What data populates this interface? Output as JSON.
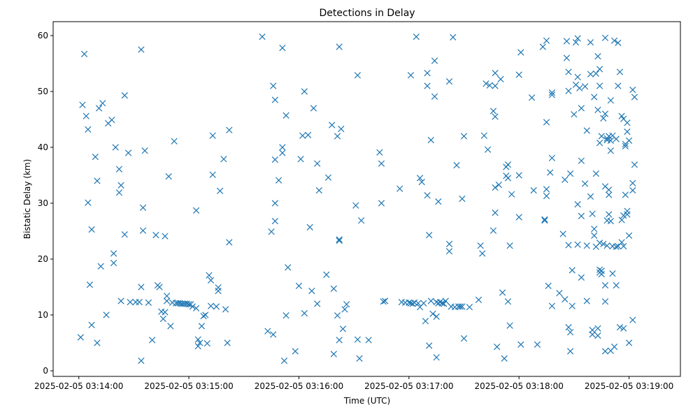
{
  "chart_data": {
    "type": "scatter",
    "title": "Detections in Delay",
    "xlabel": "Time (UTC)",
    "ylabel": "Bistatic Delay (km)",
    "x_date": "2025-02-05",
    "x_ticks": [
      "2025-02-05 03:14:00",
      "2025-02-05 03:15:00",
      "2025-02-05 03:16:00",
      "2025-02-05 03:17:00",
      "2025-02-05 03:18:00",
      "2025-02-05 03:19:00"
    ],
    "xlim": [
      "03:13:46",
      "03:19:28"
    ],
    "y_ticks": [
      0,
      10,
      20,
      30,
      40,
      50,
      60
    ],
    "ylim": [
      -1,
      62.5
    ],
    "marker": "x",
    "color": "#1f77b4",
    "grid": false,
    "points": [
      [
        "03:14:02",
        47.6
      ],
      [
        "03:14:03",
        56.7
      ],
      [
        "03:14:04",
        45.6
      ],
      [
        "03:14:05",
        43.2
      ],
      [
        "03:14:05",
        30.1
      ],
      [
        "03:14:07",
        25.3
      ],
      [
        "03:14:09",
        38.3
      ],
      [
        "03:14:10",
        34.0
      ],
      [
        "03:14:11",
        47.0
      ],
      [
        "03:14:13",
        47.9
      ],
      [
        "03:14:16",
        44.3
      ],
      [
        "03:14:18",
        44.9
      ],
      [
        "03:14:20",
        40.0
      ],
      [
        "03:14:22",
        36.1
      ],
      [
        "03:14:23",
        33.2
      ],
      [
        "03:14:25",
        24.4
      ],
      [
        "03:14:25",
        49.3
      ],
      [
        "03:14:27",
        39.0
      ],
      [
        "03:14:01",
        6.0
      ],
      [
        "03:14:06",
        15.4
      ],
      [
        "03:14:07",
        8.2
      ],
      [
        "03:14:10",
        5.0
      ],
      [
        "03:14:12",
        18.7
      ],
      [
        "03:14:15",
        10.0
      ],
      [
        "03:14:19",
        21.0
      ],
      [
        "03:14:19",
        19.3
      ],
      [
        "03:14:22",
        31.9
      ],
      [
        "03:14:23",
        12.5
      ],
      [
        "03:14:28",
        12.3
      ],
      [
        "03:14:31",
        12.3
      ],
      [
        "03:14:33",
        12.3
      ],
      [
        "03:14:34",
        57.5
      ],
      [
        "03:14:35",
        29.2
      ],
      [
        "03:14:35",
        25.1
      ],
      [
        "03:14:36",
        39.4
      ],
      [
        "03:14:38",
        12.2
      ],
      [
        "03:14:40",
        5.5
      ],
      [
        "03:14:42",
        24.3
      ],
      [
        "03:14:44",
        15.0
      ],
      [
        "03:14:45",
        10.6
      ],
      [
        "03:14:46",
        9.3
      ],
      [
        "03:14:47",
        24.1
      ],
      [
        "03:14:48",
        12.5
      ],
      [
        "03:14:49",
        34.8
      ],
      [
        "03:14:50",
        8.0
      ],
      [
        "03:14:51",
        12.2
      ],
      [
        "03:14:52",
        41.1
      ],
      [
        "03:14:53",
        12.1
      ],
      [
        "03:14:54",
        12.1
      ],
      [
        "03:14:55",
        12.1
      ],
      [
        "03:14:56",
        12.0
      ],
      [
        "03:14:57",
        12.0
      ],
      [
        "03:14:58",
        12.0
      ],
      [
        "03:14:59",
        12.0
      ],
      [
        "03:15:00",
        11.9
      ],
      [
        "03:15:01",
        11.9
      ],
      [
        "03:15:02",
        11.5
      ],
      [
        "03:15:04",
        11.2
      ],
      [
        "03:15:06",
        5.0
      ],
      [
        "03:15:09",
        10.0
      ],
      [
        "03:15:10",
        4.9
      ],
      [
        "03:15:12",
        11.6
      ],
      [
        "03:15:13",
        42.1
      ],
      [
        "03:15:13",
        35.1
      ],
      [
        "03:15:15",
        11.5
      ],
      [
        "03:15:16",
        14.9
      ],
      [
        "03:15:17",
        32.2
      ],
      [
        "03:15:19",
        37.9
      ],
      [
        "03:15:20",
        11.0
      ],
      [
        "03:15:21",
        5.0
      ],
      [
        "03:15:22",
        43.1
      ],
      [
        "03:15:22",
        23.0
      ],
      [
        "03:14:34",
        15.0
      ],
      [
        "03:14:34",
        1.8
      ],
      [
        "03:15:04",
        28.7
      ],
      [
        "03:15:05",
        5.6
      ],
      [
        "03:15:05",
        4.4
      ],
      [
        "03:15:07",
        8.0
      ],
      [
        "03:15:08",
        9.8
      ],
      [
        "03:15:11",
        17.1
      ],
      [
        "03:15:12",
        16.2
      ],
      [
        "03:15:16",
        14.3
      ],
      [
        "03:14:48",
        13.4
      ],
      [
        "03:14:47",
        10.5
      ],
      [
        "03:14:43",
        15.3
      ],
      [
        "03:15:40",
        59.8
      ],
      [
        "03:15:43",
        7.1
      ],
      [
        "03:15:46",
        6.5
      ],
      [
        "03:15:45",
        24.9
      ],
      [
        "03:15:46",
        51.0
      ],
      [
        "03:15:47",
        30.0
      ],
      [
        "03:15:47",
        26.8
      ],
      [
        "03:15:47",
        37.8
      ],
      [
        "03:15:47",
        48.5
      ],
      [
        "03:15:49",
        34.1
      ],
      [
        "03:15:51",
        57.8
      ],
      [
        "03:15:51",
        40.0
      ],
      [
        "03:15:51",
        39.0
      ],
      [
        "03:15:52",
        1.8
      ],
      [
        "03:15:53",
        9.9
      ],
      [
        "03:15:53",
        45.7
      ],
      [
        "03:15:54",
        18.5
      ],
      [
        "03:15:58",
        3.5
      ],
      [
        "03:16:00",
        15.2
      ],
      [
        "03:16:01",
        37.9
      ],
      [
        "03:16:02",
        42.1
      ],
      [
        "03:16:03",
        50.0
      ],
      [
        "03:16:03",
        10.3
      ],
      [
        "03:16:05",
        42.2
      ],
      [
        "03:16:06",
        25.7
      ],
      [
        "03:16:07",
        14.3
      ],
      [
        "03:16:08",
        47.0
      ],
      [
        "03:16:10",
        12.0
      ],
      [
        "03:16:10",
        37.1
      ],
      [
        "03:16:11",
        32.3
      ],
      [
        "03:16:15",
        17.2
      ],
      [
        "03:16:16",
        34.6
      ],
      [
        "03:16:18",
        44.0
      ],
      [
        "03:16:19",
        14.7
      ],
      [
        "03:16:19",
        3.0
      ],
      [
        "03:16:21",
        42.0
      ],
      [
        "03:16:21",
        9.9
      ],
      [
        "03:16:22",
        5.5
      ],
      [
        "03:16:22",
        23.5
      ],
      [
        "03:16:22",
        23.3
      ],
      [
        "03:16:22",
        58.0
      ],
      [
        "03:16:23",
        43.3
      ],
      [
        "03:16:24",
        7.5
      ],
      [
        "03:16:25",
        11.0
      ],
      [
        "03:16:26",
        11.9
      ],
      [
        "03:16:31",
        29.6
      ],
      [
        "03:16:32",
        52.9
      ],
      [
        "03:16:32",
        5.6
      ],
      [
        "03:16:33",
        2.2
      ],
      [
        "03:16:34",
        26.9
      ],
      [
        "03:16:38",
        5.5
      ],
      [
        "03:16:44",
        39.1
      ],
      [
        "03:16:45",
        37.1
      ],
      [
        "03:16:45",
        30.0
      ],
      [
        "03:16:46",
        12.4
      ],
      [
        "03:16:47",
        12.5
      ],
      [
        "03:16:55",
        32.6
      ],
      [
        "03:16:56",
        12.3
      ],
      [
        "03:16:58",
        12.2
      ],
      [
        "03:17:00",
        12.2
      ],
      [
        "03:17:01",
        12.1
      ],
      [
        "03:17:01",
        52.9
      ],
      [
        "03:17:03",
        12.2
      ],
      [
        "03:17:02",
        12.0
      ],
      [
        "03:17:04",
        59.8
      ],
      [
        "03:17:05",
        12.1
      ],
      [
        "03:17:06",
        34.5
      ],
      [
        "03:17:07",
        33.8
      ],
      [
        "03:17:08",
        12.1
      ],
      [
        "03:17:09",
        8.9
      ],
      [
        "03:17:10",
        31.4
      ],
      [
        "03:17:10",
        53.3
      ],
      [
        "03:17:10",
        51.0
      ],
      [
        "03:17:11",
        24.3
      ],
      [
        "03:17:11",
        4.5
      ],
      [
        "03:17:12",
        12.5
      ],
      [
        "03:17:12",
        41.3
      ],
      [
        "03:17:13",
        10.2
      ],
      [
        "03:17:14",
        49.1
      ],
      [
        "03:17:14",
        55.5
      ],
      [
        "03:17:15",
        12.3
      ],
      [
        "03:17:15",
        2.4
      ],
      [
        "03:17:16",
        12.1
      ],
      [
        "03:17:16",
        30.3
      ],
      [
        "03:17:17",
        12.3
      ],
      [
        "03:17:18",
        12.1
      ],
      [
        "03:17:19",
        12.0
      ],
      [
        "03:17:20",
        12.5
      ],
      [
        "03:17:22",
        51.8
      ],
      [
        "03:17:23",
        11.5
      ],
      [
        "03:17:24",
        59.7
      ],
      [
        "03:17:25",
        11.4
      ],
      [
        "03:17:26",
        36.8
      ],
      [
        "03:17:27",
        11.5
      ],
      [
        "03:17:28",
        11.5
      ],
      [
        "03:17:29",
        11.5
      ],
      [
        "03:17:29",
        30.8
      ],
      [
        "03:17:30",
        5.8
      ],
      [
        "03:17:30",
        42.0
      ],
      [
        "03:17:22",
        21.4
      ],
      [
        "03:17:22",
        22.7
      ],
      [
        "03:17:06",
        11.4
      ],
      [
        "03:17:15",
        9.7
      ],
      [
        "03:17:33",
        11.4
      ],
      [
        "03:17:38",
        12.7
      ],
      [
        "03:17:41",
        42.1
      ],
      [
        "03:17:39",
        22.4
      ],
      [
        "03:17:40",
        21.0
      ],
      [
        "03:17:42",
        51.4
      ],
      [
        "03:17:43",
        39.6
      ],
      [
        "03:17:44",
        51.1
      ],
      [
        "03:17:46",
        25.1
      ],
      [
        "03:17:46",
        46.5
      ],
      [
        "03:17:47",
        53.3
      ],
      [
        "03:17:47",
        45.5
      ],
      [
        "03:17:47",
        28.3
      ],
      [
        "03:17:47",
        51.0
      ],
      [
        "03:17:48",
        4.3
      ],
      [
        "03:17:49",
        33.3
      ],
      [
        "03:17:50",
        52.2
      ],
      [
        "03:17:51",
        14.0
      ],
      [
        "03:17:52",
        2.2
      ],
      [
        "03:17:53",
        36.5
      ],
      [
        "03:17:53",
        34.9
      ],
      [
        "03:17:54",
        12.4
      ],
      [
        "03:17:54",
        34.5
      ],
      [
        "03:17:54",
        36.9
      ],
      [
        "03:17:55",
        22.4
      ],
      [
        "03:17:55",
        8.1
      ],
      [
        "03:17:56",
        31.6
      ],
      [
        "03:17:47",
        32.8
      ],
      [
        "03:18:00",
        53.0
      ],
      [
        "03:18:01",
        57.0
      ],
      [
        "03:18:01",
        4.7
      ],
      [
        "03:18:00",
        27.5
      ],
      [
        "03:18:00",
        35.0
      ],
      [
        "03:18:07",
        48.9
      ],
      [
        "03:18:08",
        32.3
      ],
      [
        "03:18:10",
        4.7
      ],
      [
        "03:18:13",
        58.0
      ],
      [
        "03:18:14",
        26.9
      ],
      [
        "03:18:15",
        32.5
      ],
      [
        "03:18:15",
        31.3
      ],
      [
        "03:18:15",
        44.5
      ],
      [
        "03:18:15",
        59.1
      ],
      [
        "03:18:16",
        15.2
      ],
      [
        "03:18:17",
        35.5
      ],
      [
        "03:18:18",
        49.8
      ],
      [
        "03:18:18",
        49.4
      ],
      [
        "03:18:18",
        11.6
      ],
      [
        "03:18:18",
        38.1
      ],
      [
        "03:18:14",
        27.1
      ],
      [
        "03:18:22",
        13.9
      ],
      [
        "03:18:24",
        24.5
      ],
      [
        "03:18:25",
        12.8
      ],
      [
        "03:18:25",
        34.2
      ],
      [
        "03:18:26",
        59.0
      ],
      [
        "03:18:26",
        56.0
      ],
      [
        "03:18:27",
        53.5
      ],
      [
        "03:18:27",
        50.1
      ],
      [
        "03:18:27",
        22.5
      ],
      [
        "03:18:27",
        7.8
      ],
      [
        "03:18:28",
        3.5
      ],
      [
        "03:18:28",
        6.9
      ],
      [
        "03:18:28",
        35.3
      ],
      [
        "03:18:29",
        18.0
      ],
      [
        "03:18:29",
        11.6
      ],
      [
        "03:18:30",
        45.9
      ],
      [
        "03:18:31",
        58.8
      ],
      [
        "03:18:31",
        51.2
      ],
      [
        "03:18:32",
        29.8
      ],
      [
        "03:18:32",
        22.6
      ],
      [
        "03:18:32",
        59.5
      ],
      [
        "03:18:32",
        52.6
      ],
      [
        "03:18:33",
        50.6
      ],
      [
        "03:18:34",
        37.6
      ],
      [
        "03:18:34",
        27.7
      ],
      [
        "03:18:34",
        47.0
      ],
      [
        "03:18:34",
        16.7
      ],
      [
        "03:18:36",
        50.9
      ],
      [
        "03:18:36",
        33.5
      ],
      [
        "03:18:37",
        43.0
      ],
      [
        "03:18:37",
        22.4
      ],
      [
        "03:18:37",
        12.5
      ],
      [
        "03:18:39",
        58.8
      ],
      [
        "03:18:39",
        53.1
      ],
      [
        "03:18:39",
        31.2
      ],
      [
        "03:18:40",
        28.1
      ],
      [
        "03:18:40",
        6.5
      ],
      [
        "03:18:40",
        7.3
      ],
      [
        "03:18:41",
        49.0
      ],
      [
        "03:18:41",
        25.4
      ],
      [
        "03:18:41",
        24.2
      ],
      [
        "03:18:42",
        22.2
      ],
      [
        "03:18:42",
        53.2
      ],
      [
        "03:18:42",
        35.3
      ],
      [
        "03:18:43",
        6.3
      ],
      [
        "03:18:43",
        7.6
      ],
      [
        "03:18:43",
        56.3
      ],
      [
        "03:18:43",
        46.7
      ],
      [
        "03:18:44",
        40.8
      ],
      [
        "03:18:44",
        17.6
      ],
      [
        "03:18:44",
        22.9
      ],
      [
        "03:18:44",
        18.1
      ],
      [
        "03:18:44",
        54.0
      ],
      [
        "03:18:44",
        51.0
      ],
      [
        "03:18:45",
        42.0
      ],
      [
        "03:18:45",
        17.3
      ],
      [
        "03:18:45",
        17.9
      ],
      [
        "03:18:46",
        45.2
      ],
      [
        "03:18:46",
        22.7
      ],
      [
        "03:18:47",
        59.6
      ],
      [
        "03:18:47",
        33.0
      ],
      [
        "03:18:47",
        46.0
      ],
      [
        "03:18:47",
        15.3
      ],
      [
        "03:18:47",
        12.4
      ],
      [
        "03:18:47",
        3.5
      ],
      [
        "03:18:48",
        41.3
      ],
      [
        "03:18:48",
        26.9
      ],
      [
        "03:18:48",
        41.6
      ],
      [
        "03:18:48",
        22.4
      ],
      [
        "03:18:49",
        42.0
      ],
      [
        "03:18:49",
        28.0
      ],
      [
        "03:18:49",
        32.4
      ],
      [
        "03:18:49",
        31.5
      ],
      [
        "03:18:50",
        39.4
      ],
      [
        "03:18:50",
        41.2
      ],
      [
        "03:18:50",
        26.8
      ],
      [
        "03:18:50",
        3.6
      ],
      [
        "03:18:50",
        48.4
      ],
      [
        "03:18:51",
        42.1
      ],
      [
        "03:18:51",
        22.3
      ],
      [
        "03:18:51",
        17.4
      ],
      [
        "03:18:52",
        4.3
      ],
      [
        "03:18:52",
        59.1
      ],
      [
        "03:18:53",
        15.3
      ],
      [
        "03:18:53",
        41.5
      ],
      [
        "03:18:54",
        51.0
      ],
      [
        "03:18:54",
        58.7
      ],
      [
        "03:18:54",
        22.3
      ],
      [
        "03:18:55",
        7.8
      ],
      [
        "03:18:55",
        53.5
      ],
      [
        "03:18:56",
        45.6
      ],
      [
        "03:18:56",
        27.0
      ],
      [
        "03:18:57",
        22.3
      ],
      [
        "03:18:57",
        45.1
      ],
      [
        "03:18:57",
        7.6
      ],
      [
        "03:18:57",
        27.8
      ],
      [
        "03:18:58",
        40.6
      ],
      [
        "03:18:58",
        40.2
      ],
      [
        "03:18:58",
        31.5
      ],
      [
        "03:18:59",
        44.4
      ],
      [
        "03:18:59",
        42.8
      ],
      [
        "03:18:59",
        28.0
      ],
      [
        "03:18:59",
        28.6
      ],
      [
        "03:19:00",
        41.2
      ],
      [
        "03:19:00",
        24.2
      ],
      [
        "03:19:00",
        5.0
      ],
      [
        "03:19:02",
        50.3
      ],
      [
        "03:19:02",
        32.3
      ],
      [
        "03:19:02",
        33.6
      ],
      [
        "03:19:02",
        9.1
      ],
      [
        "03:19:03",
        49.0
      ],
      [
        "03:19:03",
        36.9
      ],
      [
        "03:18:56",
        23.0
      ],
      [
        "03:18:53",
        22.2
      ]
    ]
  }
}
